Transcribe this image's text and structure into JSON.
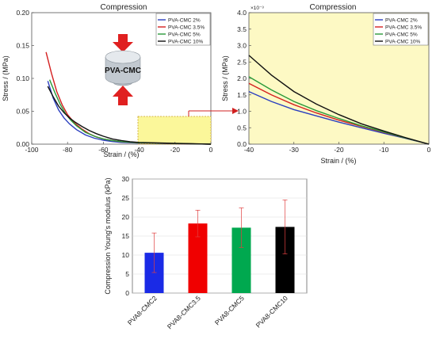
{
  "chart_data": [
    {
      "id": "left",
      "type": "line",
      "title": "Compression",
      "xlabel": "Strain / (%)",
      "ylabel": "Stress / (MPa)",
      "xlim": [
        -100,
        0
      ],
      "ylim": [
        0,
        0.2
      ],
      "xticks": [
        "-100",
        "-80",
        "-60",
        "-40",
        "-20",
        "0"
      ],
      "yticks": [
        "0.00",
        "0.05",
        "0.10",
        "0.15",
        "0.20"
      ],
      "legend_position": "top-right",
      "inset_label": "PVA-CMC",
      "series": [
        {
          "name": "PVA-CMC 2%",
          "color": "#2b3fbf",
          "x": [
            -91,
            -88,
            -85,
            -82,
            -79,
            -75,
            -70,
            -65,
            -60,
            -55,
            -50,
            -40,
            -20,
            0
          ],
          "y": [
            0.096,
            0.07,
            0.052,
            0.04,
            0.031,
            0.022,
            0.014,
            0.009,
            0.006,
            0.004,
            0.0027,
            0.0016,
            0.0008,
            0
          ]
        },
        {
          "name": "PVA-CMC 3.5%",
          "color": "#d42020",
          "x": [
            -92,
            -89,
            -86,
            -83,
            -80,
            -76,
            -72,
            -68,
            -64,
            -60,
            -55,
            -50,
            -40,
            -20,
            0
          ],
          "y": [
            0.14,
            0.108,
            0.08,
            0.06,
            0.045,
            0.032,
            0.023,
            0.016,
            0.011,
            0.008,
            0.0055,
            0.0037,
            0.0019,
            0.0009,
            0
          ]
        },
        {
          "name": "PVA-CMC 5%",
          "color": "#2a9a3a",
          "x": [
            -90,
            -87,
            -84,
            -81,
            -78,
            -75,
            -70,
            -65,
            -60,
            -55,
            -50,
            -40,
            -20,
            0
          ],
          "y": [
            0.098,
            0.078,
            0.06,
            0.046,
            0.036,
            0.028,
            0.018,
            0.012,
            0.008,
            0.0055,
            0.0038,
            0.0021,
            0.001,
            0
          ]
        },
        {
          "name": "PVA-CMC 10%",
          "color": "#111111",
          "x": [
            -91,
            -88,
            -85,
            -82,
            -79,
            -76,
            -72,
            -68,
            -64,
            -60,
            -55,
            -50,
            -45,
            -40,
            -20,
            0
          ],
          "y": [
            0.088,
            0.072,
            0.058,
            0.048,
            0.04,
            0.034,
            0.027,
            0.021,
            0.016,
            0.012,
            0.008,
            0.0055,
            0.0037,
            0.0027,
            0.0012,
            0
          ]
        }
      ]
    },
    {
      "id": "right",
      "type": "line",
      "title": "Compression",
      "xlabel": "Strain / (%)",
      "ylabel": "Stress / (MPa)",
      "y_multiplier": "×10⁻³",
      "xlim": [
        -40,
        0
      ],
      "ylim": [
        0,
        4.0
      ],
      "xticks": [
        "-40",
        "-30",
        "-20",
        "-10",
        "0"
      ],
      "yticks": [
        "0.0",
        "0.5",
        "1.0",
        "1.5",
        "2.0",
        "2.5",
        "3.0",
        "3.5",
        "4.0"
      ],
      "legend_position": "top-right",
      "series": [
        {
          "name": "PVA-CMC 2%",
          "color": "#2b3fbf",
          "x": [
            -40,
            -35,
            -30,
            -25,
            -20,
            -15,
            -10,
            -5,
            0
          ],
          "y": [
            1.6,
            1.3,
            1.05,
            0.86,
            0.67,
            0.5,
            0.33,
            0.17,
            0
          ]
        },
        {
          "name": "PVA-CMC 3.5%",
          "color": "#d42020",
          "x": [
            -40,
            -35,
            -30,
            -25,
            -20,
            -15,
            -10,
            -5,
            0
          ],
          "y": [
            1.85,
            1.5,
            1.2,
            0.95,
            0.73,
            0.54,
            0.36,
            0.18,
            0
          ]
        },
        {
          "name": "PVA-CMC 5%",
          "color": "#2a9a3a",
          "x": [
            -40,
            -35,
            -30,
            -25,
            -20,
            -15,
            -10,
            -5,
            0
          ],
          "y": [
            2.05,
            1.65,
            1.3,
            1.02,
            0.78,
            0.56,
            0.37,
            0.18,
            0
          ]
        },
        {
          "name": "PVA-CMC 10%",
          "color": "#111111",
          "x": [
            -40,
            -35,
            -30,
            -25,
            -20,
            -15,
            -10,
            -5,
            0
          ],
          "y": [
            2.7,
            2.1,
            1.6,
            1.22,
            0.9,
            0.62,
            0.4,
            0.19,
            0
          ]
        }
      ]
    },
    {
      "id": "bottom",
      "type": "bar",
      "title": "",
      "xlabel": "",
      "ylabel": "Compression Young's modulus (kPa)",
      "ylim": [
        0,
        30
      ],
      "yticks": [
        "0",
        "5",
        "10",
        "15",
        "20",
        "25",
        "30"
      ],
      "categories": [
        "PVA8-CMC2",
        "PVA8-CMC3.5",
        "PVA8-CMC5",
        "PVA8-CMC10"
      ],
      "values": [
        10.6,
        18.3,
        17.2,
        17.4
      ],
      "errors": [
        5.2,
        3.5,
        5.2,
        7.1
      ],
      "colors": [
        "#1a2ae6",
        "#f00000",
        "#00a84f",
        "#000000"
      ]
    }
  ]
}
